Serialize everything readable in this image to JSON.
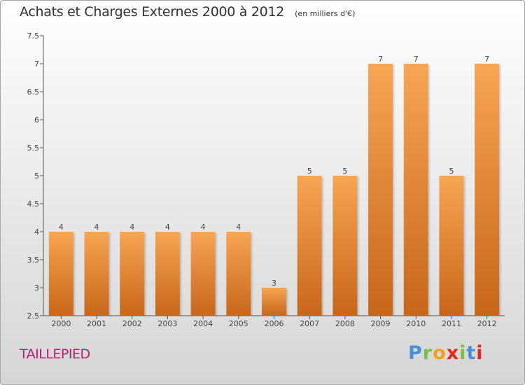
{
  "header": {
    "title": "Achats et Charges Externes 2000 à 2012",
    "unit": "(en milliers d'€)"
  },
  "footer": {
    "commune": "TAILLEPIED",
    "brand_letters": [
      "P",
      "r",
      "o",
      "x",
      "i",
      "t",
      "i"
    ],
    "brand_colors": [
      "#4a90d9",
      "#7cbf3f",
      "#f2a01a",
      "#e0281c",
      "#7cbf3f",
      "#4a90d9",
      "#e0281c"
    ]
  },
  "colors": {
    "bar_top": "#f7a653",
    "bar_bottom": "#c8661a",
    "commune": "#c0186e"
  },
  "chart_data": {
    "type": "bar",
    "title": "Achats et Charges Externes 2000 à 2012",
    "subtitle": "(en milliers d'€)",
    "xlabel": "",
    "ylabel": "",
    "categories": [
      "2000",
      "2001",
      "2002",
      "2003",
      "2004",
      "2005",
      "2006",
      "2007",
      "2008",
      "2009",
      "2010",
      "2011",
      "2012"
    ],
    "values": [
      4,
      4,
      4,
      4,
      4,
      4,
      3,
      5,
      5,
      7,
      7,
      5,
      7
    ],
    "data_labels": [
      "4",
      "4",
      "4",
      "4",
      "4",
      "4",
      "3",
      "5",
      "5",
      "7",
      "7",
      "5",
      "7"
    ],
    "ylim": [
      2.5,
      7.5
    ],
    "yticks": [
      2.5,
      3,
      3.5,
      4,
      4.5,
      5,
      5.5,
      6,
      6.5,
      7,
      7.5
    ],
    "grid": false,
    "legend": "none"
  }
}
